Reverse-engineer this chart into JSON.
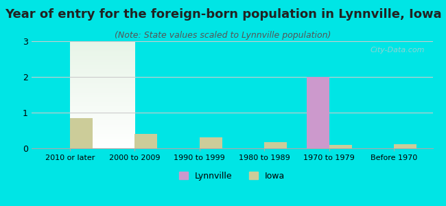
{
  "categories": [
    "2010 or later",
    "2000 to 2009",
    "1990 to 1999",
    "1980 to 1989",
    "1970 to 1979",
    "Before 1970"
  ],
  "lynnville_values": [
    0,
    0,
    0,
    0,
    2,
    0
  ],
  "iowa_values": [
    0.85,
    0.4,
    0.3,
    0.18,
    0.1,
    0.12
  ],
  "lynnville_color": "#cc99cc",
  "iowa_color": "#cccc99",
  "title": "Year of entry for the foreign-born population in Lynnville, Iowa",
  "subtitle": "(Note: State values scaled to Lynnville population)",
  "ylim": [
    0,
    3
  ],
  "yticks": [
    0,
    1,
    2,
    3
  ],
  "background_color": "#00e5e5",
  "plot_bg_top": "#e8f5e8",
  "plot_bg_bottom": "#f8fff8",
  "bar_width": 0.35,
  "title_fontsize": 13,
  "subtitle_fontsize": 9,
  "legend_labels": [
    "Lynnville",
    "Iowa"
  ],
  "watermark": "City-Data.com"
}
